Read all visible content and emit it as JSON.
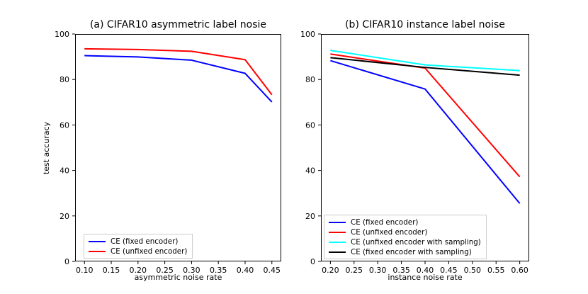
{
  "figure": {
    "background": "#ffffff",
    "axis_color": "#000000",
    "legend_border_color": "#cccccc"
  },
  "chart_data": [
    {
      "type": "line",
      "title": "(a) CIFAR10 asymmetric label nosie",
      "xlabel": "asymmetric noise rate",
      "ylabel": "test accuracy",
      "x": [
        0.1,
        0.2,
        0.3,
        0.4,
        0.45
      ],
      "xlim": [
        0.0825,
        0.4675
      ],
      "ylim": [
        0,
        100
      ],
      "xticks": [
        "0.10",
        "0.15",
        "0.20",
        "0.25",
        "0.30",
        "0.35",
        "0.40",
        "0.45"
      ],
      "yticks": [
        "0",
        "20",
        "40",
        "60",
        "80",
        "100"
      ],
      "grid": false,
      "legend_position": "lower left",
      "series": [
        {
          "name": "CE (fixed encoder)",
          "color": "#0000ff",
          "values": [
            90.5,
            89.9,
            88.5,
            82.7,
            70.1
          ]
        },
        {
          "name": "CE (unfixed encoder)",
          "color": "#ff0000",
          "values": [
            93.5,
            93.2,
            92.4,
            88.7,
            73.3
          ]
        }
      ]
    },
    {
      "type": "line",
      "title": "(b) CIFAR10 instance label noise",
      "xlabel": "instance noise rate",
      "ylabel": "",
      "x": [
        0.2,
        0.4,
        0.6
      ],
      "xlim": [
        0.18,
        0.62
      ],
      "ylim": [
        0,
        100
      ],
      "xticks": [
        "0.20",
        "0.25",
        "0.30",
        "0.35",
        "0.40",
        "0.45",
        "0.50",
        "0.55",
        "0.60"
      ],
      "yticks": [
        "0",
        "20",
        "40",
        "60",
        "80",
        "100"
      ],
      "grid": false,
      "legend_position": "lower left",
      "series": [
        {
          "name": "CE (fixed encoder)",
          "color": "#0000ff",
          "values": [
            88.3,
            75.8,
            25.5
          ]
        },
        {
          "name": "CE (unfixed encoder)",
          "color": "#ff0000",
          "values": [
            91.2,
            85.0,
            37.2
          ]
        },
        {
          "name": "CE (unfixed encoder with sampling)",
          "color": "#00ffff",
          "values": [
            92.8,
            86.4,
            83.9
          ]
        },
        {
          "name": "CE (fixed encoder with sampling)",
          "color": "#000000",
          "values": [
            89.6,
            85.3,
            81.9
          ]
        }
      ]
    }
  ]
}
